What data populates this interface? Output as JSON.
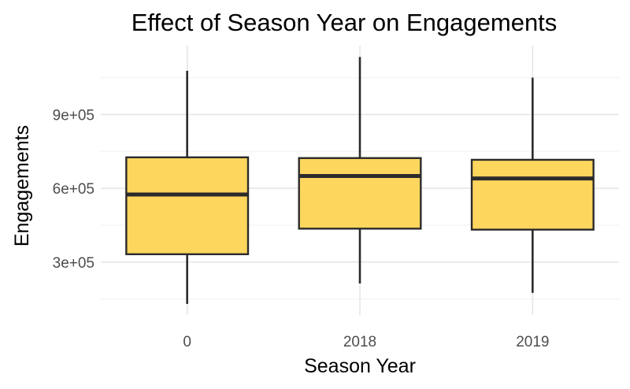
{
  "chart_data": {
    "type": "boxplot",
    "title": "Effect of Season Year on Engagements",
    "xlabel": "Season Year",
    "ylabel": "Engagements",
    "categories": [
      "0",
      "2018",
      "2019"
    ],
    "series": [
      {
        "category": "0",
        "min": 130000,
        "q1": 332000,
        "median": 575000,
        "q3": 726000,
        "max": 1078000
      },
      {
        "category": "2018",
        "min": 213000,
        "q1": 436000,
        "median": 650000,
        "q3": 723000,
        "max": 1134000
      },
      {
        "category": "2019",
        "min": 175000,
        "q1": 432000,
        "median": 640000,
        "q3": 716000,
        "max": 1050000
      }
    ],
    "y_ticks": [
      300000,
      600000,
      900000
    ],
    "y_tick_labels": [
      "3e+05",
      "6e+05",
      "9e+05"
    ],
    "ylim": [
      85000,
      1180000
    ],
    "grid": true,
    "box_fill": "#FDD65E",
    "box_stroke": "#2b2b2b"
  }
}
